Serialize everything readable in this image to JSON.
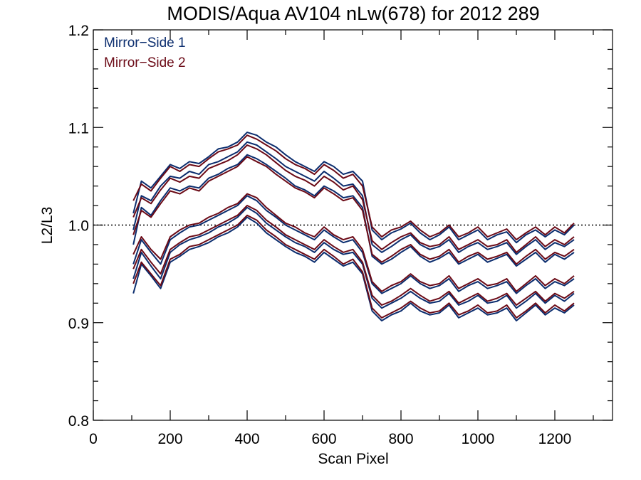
{
  "chart_data": {
    "type": "line",
    "title": "MODIS/Aqua AV104 nLw(678) for 2012 289",
    "xlabel": "Scan Pixel",
    "ylabel": "L2/L3",
    "xlim": [
      0,
      1350
    ],
    "ylim": [
      0.8,
      1.2
    ],
    "xticks": [
      0,
      200,
      400,
      600,
      800,
      1000,
      1200
    ],
    "xtick_labels": [
      "0",
      "200",
      "400",
      "600",
      "800",
      "1000",
      "1200"
    ],
    "yticks": [
      0.8,
      0.9,
      1.0,
      1.1,
      1.2
    ],
    "ytick_labels": [
      "0.8",
      "0.9",
      "1.0",
      "1.1",
      "1.2"
    ],
    "reference_line": {
      "y": 1.0,
      "style": "dotted"
    },
    "legend": {
      "placement": "top-left",
      "entries": [
        "Mirror−Side 1",
        "Mirror−Side 2"
      ]
    },
    "colors": {
      "Mirror−Side 1": "#0b2d6e",
      "Mirror−Side 2": "#6b0a16"
    },
    "x": [
      104,
      125,
      150,
      175,
      200,
      225,
      250,
      275,
      300,
      325,
      350,
      375,
      400,
      425,
      450,
      475,
      500,
      525,
      550,
      575,
      600,
      625,
      650,
      675,
      700,
      725,
      750,
      775,
      800,
      825,
      850,
      875,
      900,
      925,
      950,
      975,
      1000,
      1025,
      1050,
      1075,
      1100,
      1125,
      1150,
      1175,
      1200,
      1225,
      1250
    ],
    "series": [
      {
        "name": "Mirror−Side 1",
        "values": [
          1.012,
          1.045,
          1.038,
          1.05,
          1.062,
          1.058,
          1.065,
          1.063,
          1.07,
          1.078,
          1.08,
          1.085,
          1.095,
          1.092,
          1.085,
          1.08,
          1.072,
          1.065,
          1.06,
          1.055,
          1.065,
          1.06,
          1.052,
          1.055,
          1.045,
          0.995,
          0.985,
          0.992,
          0.996,
          1.002,
          0.992,
          0.985,
          0.99,
          0.998,
          0.985,
          0.99,
          0.995,
          0.985,
          0.99,
          0.993,
          0.982,
          0.99,
          0.995,
          0.988,
          0.995,
          0.99,
          1.0
        ]
      },
      {
        "name": "Mirror−Side 1",
        "values": [
          0.995,
          1.03,
          1.025,
          1.04,
          1.05,
          1.048,
          1.055,
          1.052,
          1.062,
          1.065,
          1.07,
          1.075,
          1.085,
          1.082,
          1.075,
          1.068,
          1.06,
          1.055,
          1.05,
          1.045,
          1.055,
          1.048,
          1.04,
          1.042,
          1.03,
          0.98,
          0.972,
          0.978,
          0.985,
          0.99,
          0.98,
          0.975,
          0.978,
          0.985,
          0.972,
          0.978,
          0.982,
          0.975,
          0.978,
          0.982,
          0.97,
          0.978,
          0.985,
          0.975,
          0.982,
          0.978,
          0.985
        ]
      },
      {
        "name": "Mirror−Side 1",
        "values": [
          0.98,
          1.018,
          1.01,
          1.025,
          1.038,
          1.035,
          1.04,
          1.038,
          1.048,
          1.052,
          1.058,
          1.062,
          1.072,
          1.068,
          1.062,
          1.055,
          1.048,
          1.04,
          1.036,
          1.03,
          1.04,
          1.035,
          1.028,
          1.03,
          1.018,
          0.968,
          0.96,
          0.965,
          0.972,
          0.978,
          0.968,
          0.962,
          0.966,
          0.972,
          0.96,
          0.965,
          0.97,
          0.962,
          0.966,
          0.97,
          0.958,
          0.965,
          0.972,
          0.962,
          0.97,
          0.965,
          0.972
        ]
      },
      {
        "name": "Mirror−Side 1",
        "values": [
          0.96,
          0.985,
          0.972,
          0.96,
          0.985,
          0.992,
          0.998,
          1.0,
          1.005,
          1.01,
          1.015,
          1.02,
          1.03,
          1.025,
          1.015,
          1.008,
          1.0,
          0.995,
          0.99,
          0.985,
          0.995,
          0.988,
          0.982,
          0.985,
          0.972,
          0.94,
          0.93,
          0.935,
          0.94,
          0.948,
          0.94,
          0.935,
          0.938,
          0.945,
          0.932,
          0.938,
          0.942,
          0.935,
          0.938,
          0.942,
          0.93,
          0.938,
          0.945,
          0.935,
          0.942,
          0.938,
          0.945
        ]
      },
      {
        "name": "Mirror−Side 1",
        "values": [
          0.945,
          0.972,
          0.958,
          0.945,
          0.972,
          0.98,
          0.985,
          0.988,
          0.992,
          0.998,
          1.002,
          1.008,
          1.018,
          1.012,
          1.002,
          0.995,
          0.988,
          0.982,
          0.978,
          0.972,
          0.982,
          0.975,
          0.97,
          0.972,
          0.96,
          0.925,
          0.915,
          0.92,
          0.925,
          0.932,
          0.925,
          0.92,
          0.922,
          0.93,
          0.918,
          0.922,
          0.928,
          0.92,
          0.922,
          0.928,
          0.915,
          0.922,
          0.93,
          0.92,
          0.928,
          0.922,
          0.93
        ]
      },
      {
        "name": "Mirror−Side 1",
        "values": [
          0.93,
          0.96,
          0.948,
          0.935,
          0.962,
          0.968,
          0.975,
          0.978,
          0.982,
          0.988,
          0.992,
          0.998,
          1.008,
          1.002,
          0.992,
          0.985,
          0.978,
          0.972,
          0.968,
          0.962,
          0.972,
          0.965,
          0.958,
          0.962,
          0.95,
          0.912,
          0.902,
          0.908,
          0.912,
          0.92,
          0.912,
          0.908,
          0.91,
          0.918,
          0.905,
          0.91,
          0.915,
          0.908,
          0.91,
          0.915,
          0.902,
          0.91,
          0.918,
          0.908,
          0.915,
          0.91,
          0.918
        ]
      },
      {
        "name": "Mirror−Side 2",
        "values": [
          1.025,
          1.042,
          1.035,
          1.048,
          1.06,
          1.055,
          1.062,
          1.06,
          1.068,
          1.075,
          1.078,
          1.082,
          1.092,
          1.088,
          1.082,
          1.076,
          1.068,
          1.062,
          1.058,
          1.052,
          1.062,
          1.056,
          1.048,
          1.052,
          1.04,
          0.998,
          0.988,
          0.995,
          0.998,
          1.004,
          0.995,
          0.988,
          0.992,
          1.0,
          0.988,
          0.992,
          0.998,
          0.988,
          0.992,
          0.996,
          0.985,
          0.992,
          0.998,
          0.99,
          0.998,
          0.992,
          1.002
        ]
      },
      {
        "name": "Mirror−Side 2",
        "values": [
          1.008,
          1.028,
          1.022,
          1.036,
          1.048,
          1.044,
          1.05,
          1.048,
          1.058,
          1.062,
          1.066,
          1.072,
          1.082,
          1.078,
          1.072,
          1.064,
          1.056,
          1.05,
          1.046,
          1.04,
          1.05,
          1.044,
          1.036,
          1.04,
          1.026,
          0.984,
          0.975,
          0.982,
          0.988,
          0.992,
          0.982,
          0.978,
          0.98,
          0.988,
          0.975,
          0.98,
          0.985,
          0.978,
          0.98,
          0.985,
          0.972,
          0.98,
          0.988,
          0.978,
          0.985,
          0.98,
          0.988
        ]
      },
      {
        "name": "Mirror−Side 2",
        "values": [
          0.99,
          1.015,
          1.008,
          1.022,
          1.035,
          1.032,
          1.038,
          1.035,
          1.045,
          1.05,
          1.055,
          1.06,
          1.07,
          1.065,
          1.06,
          1.052,
          1.045,
          1.038,
          1.034,
          1.028,
          1.038,
          1.032,
          1.025,
          1.028,
          1.015,
          0.97,
          0.962,
          0.968,
          0.975,
          0.98,
          0.97,
          0.965,
          0.968,
          0.975,
          0.962,
          0.968,
          0.972,
          0.965,
          0.968,
          0.972,
          0.96,
          0.968,
          0.975,
          0.965,
          0.972,
          0.968,
          0.975
        ]
      },
      {
        "name": "Mirror−Side 2",
        "values": [
          0.97,
          0.988,
          0.975,
          0.965,
          0.988,
          0.995,
          1.0,
          1.002,
          1.008,
          1.012,
          1.018,
          1.022,
          1.032,
          1.028,
          1.018,
          1.01,
          1.002,
          0.998,
          0.992,
          0.988,
          0.998,
          0.99,
          0.985,
          0.988,
          0.975,
          0.942,
          0.932,
          0.938,
          0.942,
          0.95,
          0.942,
          0.938,
          0.94,
          0.948,
          0.935,
          0.94,
          0.945,
          0.938,
          0.94,
          0.945,
          0.932,
          0.94,
          0.948,
          0.938,
          0.945,
          0.94,
          0.948
        ]
      },
      {
        "name": "Mirror−Side 2",
        "values": [
          0.955,
          0.975,
          0.962,
          0.95,
          0.975,
          0.982,
          0.988,
          0.99,
          0.995,
          1.0,
          1.005,
          1.01,
          1.02,
          1.015,
          1.005,
          0.998,
          0.99,
          0.985,
          0.98,
          0.975,
          0.985,
          0.978,
          0.972,
          0.975,
          0.962,
          0.928,
          0.918,
          0.922,
          0.928,
          0.935,
          0.928,
          0.922,
          0.925,
          0.932,
          0.92,
          0.925,
          0.93,
          0.922,
          0.925,
          0.93,
          0.918,
          0.925,
          0.932,
          0.922,
          0.93,
          0.925,
          0.932
        ]
      },
      {
        "name": "Mirror−Side 2",
        "values": [
          0.94,
          0.962,
          0.95,
          0.938,
          0.965,
          0.97,
          0.978,
          0.98,
          0.985,
          0.99,
          0.995,
          1.0,
          1.01,
          1.005,
          0.995,
          0.988,
          0.98,
          0.975,
          0.97,
          0.965,
          0.975,
          0.968,
          0.96,
          0.965,
          0.952,
          0.915,
          0.905,
          0.91,
          0.915,
          0.922,
          0.915,
          0.91,
          0.912,
          0.92,
          0.908,
          0.912,
          0.918,
          0.91,
          0.912,
          0.918,
          0.905,
          0.912,
          0.92,
          0.91,
          0.918,
          0.912,
          0.92
        ]
      }
    ]
  }
}
